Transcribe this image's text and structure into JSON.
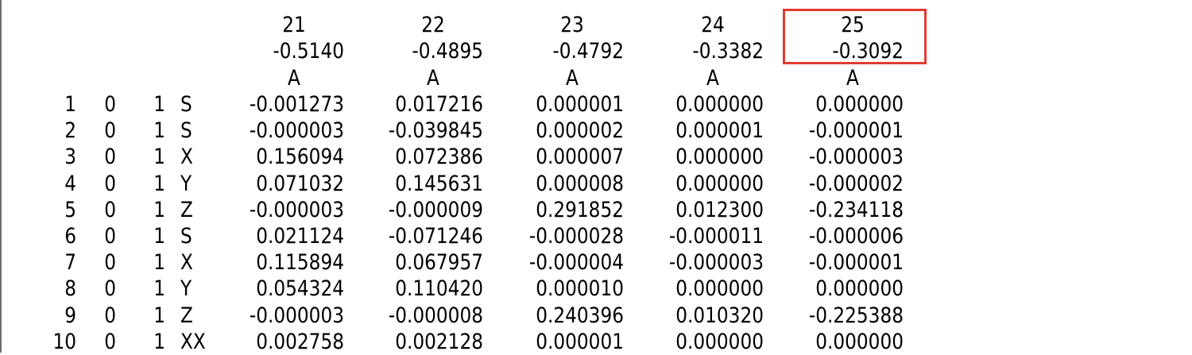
{
  "table": {
    "columns": [
      {
        "number": "21",
        "eigenvalue": "-0.5140",
        "symmetry": "A"
      },
      {
        "number": "22",
        "eigenvalue": "-0.4895",
        "symmetry": "A"
      },
      {
        "number": "23",
        "eigenvalue": "-0.4792",
        "symmetry": "A"
      },
      {
        "number": "24",
        "eigenvalue": "-0.3382",
        "symmetry": "A"
      },
      {
        "number": "25",
        "eigenvalue": "-0.3092",
        "symmetry": "A"
      }
    ],
    "rows": [
      {
        "index": "1",
        "a": "0",
        "b": "1",
        "type": "S",
        "values": [
          "-0.001273",
          "0.017216",
          "0.000001",
          "0.000000",
          "0.000000"
        ]
      },
      {
        "index": "2",
        "a": "0",
        "b": "1",
        "type": "S",
        "values": [
          "-0.000003",
          "-0.039845",
          "0.000002",
          "0.000001",
          "-0.000001"
        ]
      },
      {
        "index": "3",
        "a": "0",
        "b": "1",
        "type": "X",
        "values": [
          "0.156094",
          "0.072386",
          "0.000007",
          "0.000000",
          "-0.000003"
        ]
      },
      {
        "index": "4",
        "a": "0",
        "b": "1",
        "type": "Y",
        "values": [
          "0.071032",
          "0.145631",
          "0.000008",
          "0.000000",
          "-0.000002"
        ]
      },
      {
        "index": "5",
        "a": "0",
        "b": "1",
        "type": "Z",
        "values": [
          "-0.000003",
          "-0.000009",
          "0.291852",
          "0.012300",
          "-0.234118"
        ]
      },
      {
        "index": "6",
        "a": "0",
        "b": "1",
        "type": "S",
        "values": [
          "0.021124",
          "-0.071246",
          "-0.000028",
          "-0.000011",
          "-0.000006"
        ]
      },
      {
        "index": "7",
        "a": "0",
        "b": "1",
        "type": "X",
        "values": [
          "0.115894",
          "0.067957",
          "-0.000004",
          "-0.000003",
          "-0.000001"
        ]
      },
      {
        "index": "8",
        "a": "0",
        "b": "1",
        "type": "Y",
        "values": [
          "0.054324",
          "0.110420",
          "0.000010",
          "0.000000",
          "0.000000"
        ]
      },
      {
        "index": "9",
        "a": "0",
        "b": "1",
        "type": "Z",
        "values": [
          "-0.000003",
          "-0.000008",
          "0.240396",
          "0.010320",
          "-0.225388"
        ]
      },
      {
        "index": "10",
        "a": "0",
        "b": "1",
        "type": "XX",
        "values": [
          "0.002758",
          "0.002128",
          "0.000001",
          "0.000000",
          "0.000000"
        ]
      }
    ]
  },
  "highlight": {
    "column_number": "25",
    "color": "#e23a2e"
  },
  "colors": {
    "text": "#000000",
    "background": "#ffffff",
    "border": "#6e6e6e"
  }
}
